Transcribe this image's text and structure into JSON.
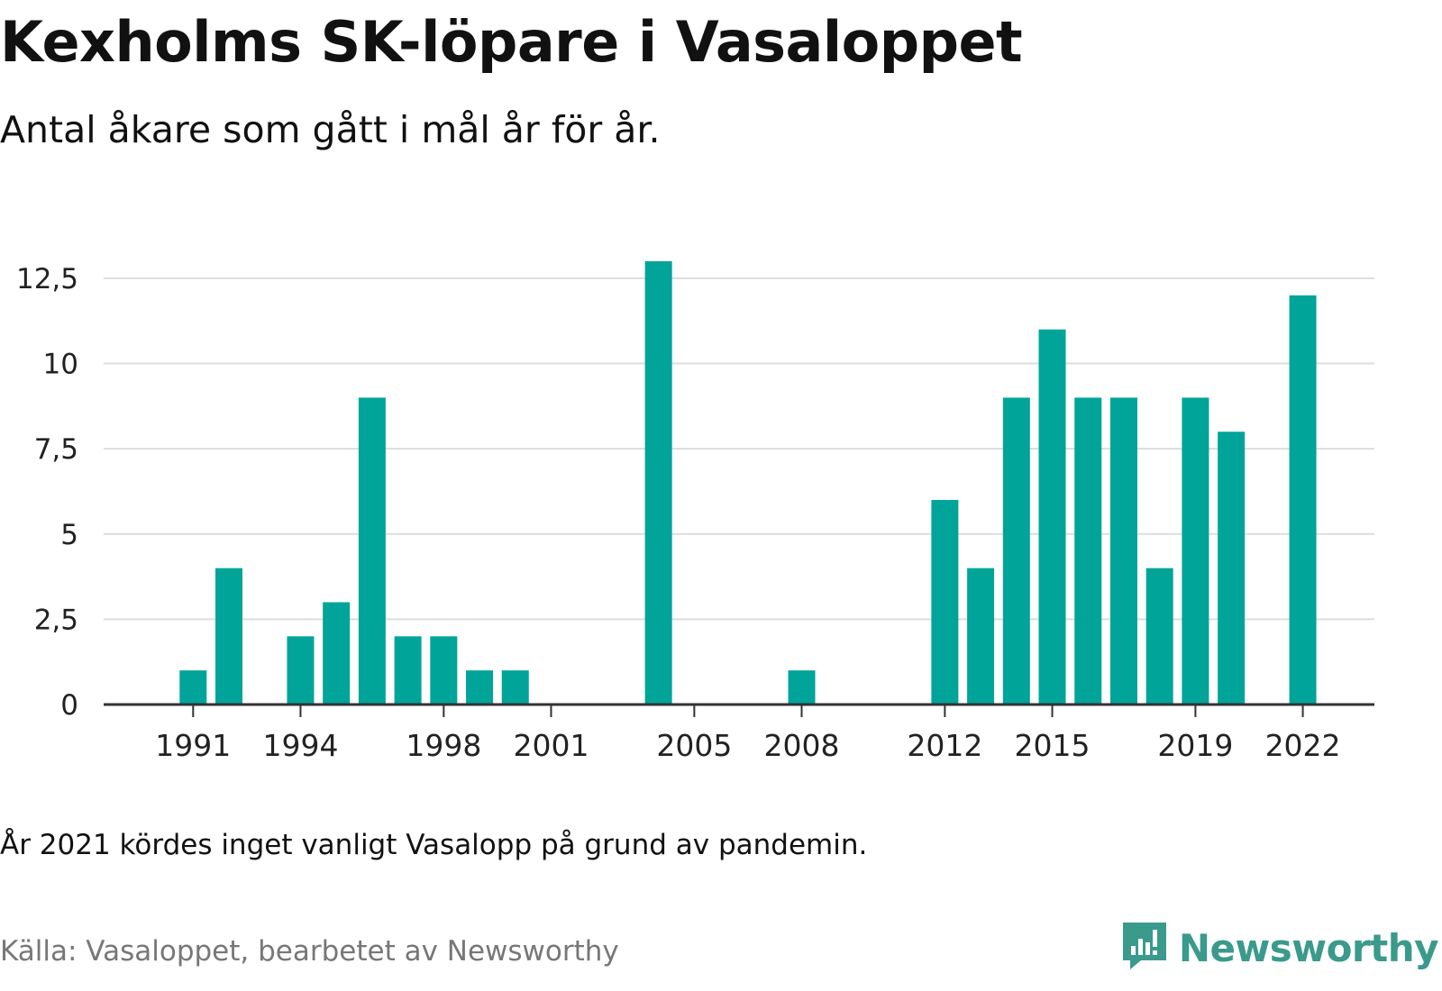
{
  "title": "Kexholms SK-löpare i Vasaloppet",
  "subtitle": "Antal åkare som gått i mål år för år.",
  "note": "År 2021 kördes inget vanligt Vasalopp på grund av pandemin.",
  "source": "Källa: Vasaloppet, bearbetet av Newsworthy",
  "brand": {
    "name": "Newsworthy",
    "icon": "newsworthy-logo-icon",
    "color": "#3a9a8c"
  },
  "colors": {
    "bar": "#00a499",
    "grid": "#dddddd",
    "axis": "#333333"
  },
  "chart_data": {
    "type": "bar",
    "title": "Kexholms SK-löpare i Vasaloppet",
    "subtitle": "Antal åkare som gått i mål år för år.",
    "xlabel": "",
    "ylabel": "",
    "ylim": [
      0,
      13
    ],
    "grid": true,
    "y_ticks": [
      {
        "value": 0,
        "label": "0"
      },
      {
        "value": 2.5,
        "label": "2,5"
      },
      {
        "value": 5,
        "label": "5"
      },
      {
        "value": 7.5,
        "label": "7,5"
      },
      {
        "value": 10,
        "label": "10"
      },
      {
        "value": 12.5,
        "label": "12,5"
      }
    ],
    "x_ticks": [
      1991,
      1994,
      1998,
      2001,
      2005,
      2008,
      2012,
      2015,
      2019,
      2022
    ],
    "x_range": [
      1988.5,
      2024
    ],
    "categories": [
      1991,
      1992,
      1994,
      1995,
      1996,
      1997,
      1998,
      1999,
      2000,
      2004,
      2008,
      2012,
      2013,
      2014,
      2015,
      2016,
      2017,
      2018,
      2019,
      2020,
      2022
    ],
    "values": [
      1,
      4,
      2,
      3,
      9,
      2,
      2,
      1,
      1,
      13,
      1,
      6,
      4,
      9,
      11,
      9,
      9,
      4,
      9,
      8,
      12
    ]
  }
}
